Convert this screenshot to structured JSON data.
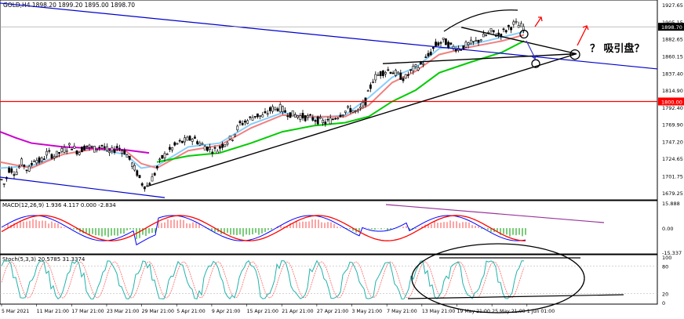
{
  "symbol_header": "GOLD,H4  1898.20 1899.20 1895.00 1898.70",
  "annotation_text": "？ 吸引盘？",
  "price_axis": {
    "ticks": [
      "1927.65",
      "1905.15",
      "1882.65",
      "1860.15",
      "1837.40",
      "1814.90",
      "1792.40",
      "1769.90",
      "1747.20",
      "1724.65",
      "1701.75",
      "1679.25"
    ],
    "current_price": "1898.70",
    "red_level": "1800.00",
    "current_value": 1898.7,
    "red_value": 1800.0
  },
  "macd_panel": {
    "header": "MACD(12,26,9) 1.936 4.117 0.000 -2.834",
    "ticks": [
      "15.888",
      "0.00",
      "-15.337"
    ]
  },
  "stoch_panel": {
    "header": "Stoch(5,3,3) 20.5785 31.3374",
    "ticks": [
      "100",
      "80",
      "20",
      "0"
    ]
  },
  "time_axis": {
    "labels": [
      "5 Mar 2021",
      "11 Mar 21:00",
      "17 Mar 21:00",
      "23 Mar 21:00",
      "29 Mar 21:00",
      "5 Apr 21:00",
      "9 Apr 21:00",
      "15 Apr 21:00",
      "21 Apr 21:00",
      "27 Apr 21:00",
      "3 May 21:00",
      "7 May 21:00",
      "13 May 21:00",
      "19 May 21:00",
      "25 May 21:00",
      "1 Jun 01:00"
    ]
  },
  "colors": {
    "candle": "#000000",
    "ma_fast": "#87cefa",
    "ma_mid": "#f08080",
    "ma_slow": "#00cc00",
    "ma_long": "#cc00cc",
    "channel": "#0000cc",
    "red_line": "#ff0000",
    "macd_line": "#0000ff",
    "signal_line": "#ff0000",
    "hist_pos": "#ff6666",
    "hist_neg": "#22aa22",
    "stoch_main": "#20b2aa",
    "stoch_signal": "#ff6666"
  },
  "chart_data": {
    "type": "candlestick",
    "symbol": "GOLD",
    "timeframe": "H4",
    "y_range": [
      1670,
      1932
    ],
    "candle_path": [
      [
        0,
        1700
      ],
      [
        6,
        1690
      ],
      [
        12,
        1712
      ],
      [
        20,
        1705
      ],
      [
        28,
        1720
      ],
      [
        36,
        1708
      ],
      [
        44,
        1725
      ],
      [
        52,
        1720
      ],
      [
        60,
        1732
      ],
      [
        70,
        1728
      ],
      [
        80,
        1735
      ],
      [
        90,
        1742
      ],
      [
        100,
        1733
      ],
      [
        110,
        1742
      ],
      [
        120,
        1737
      ],
      [
        130,
        1742
      ],
      [
        140,
        1732
      ],
      [
        150,
        1740
      ],
      [
        160,
        1733
      ],
      [
        168,
        1718
      ],
      [
        175,
        1705
      ],
      [
        182,
        1690
      ],
      [
        188,
        1688
      ],
      [
        196,
        1702
      ],
      [
        206,
        1725
      ],
      [
        216,
        1735
      ],
      [
        226,
        1744
      ],
      [
        236,
        1748
      ],
      [
        246,
        1752
      ],
      [
        256,
        1744
      ],
      [
        266,
        1738
      ],
      [
        276,
        1735
      ],
      [
        286,
        1745
      ],
      [
        296,
        1752
      ],
      [
        306,
        1770
      ],
      [
        316,
        1775
      ],
      [
        326,
        1782
      ],
      [
        336,
        1780
      ],
      [
        346,
        1790
      ],
      [
        356,
        1792
      ],
      [
        366,
        1785
      ],
      [
        376,
        1782
      ],
      [
        386,
        1780
      ],
      [
        396,
        1778
      ],
      [
        406,
        1775
      ],
      [
        416,
        1772
      ],
      [
        426,
        1778
      ],
      [
        436,
        1785
      ],
      [
        446,
        1790
      ],
      [
        456,
        1785
      ],
      [
        466,
        1800
      ],
      [
        476,
        1830
      ],
      [
        486,
        1838
      ],
      [
        496,
        1842
      ],
      [
        506,
        1836
      ],
      [
        516,
        1830
      ],
      [
        526,
        1842
      ],
      [
        536,
        1848
      ],
      [
        546,
        1860
      ],
      [
        556,
        1875
      ],
      [
        566,
        1880
      ],
      [
        576,
        1872
      ],
      [
        586,
        1870
      ],
      [
        596,
        1875
      ],
      [
        606,
        1878
      ],
      [
        616,
        1885
      ],
      [
        626,
        1892
      ],
      [
        636,
        1888
      ],
      [
        646,
        1895
      ],
      [
        656,
        1903
      ],
      [
        666,
        1898
      ],
      [
        670,
        1898.7
      ]
    ],
    "moving_averages": [
      {
        "color": "#87cefa",
        "values": [
          [
            0,
            1712
          ],
          [
            40,
            1715
          ],
          [
            80,
            1730
          ],
          [
            120,
            1738
          ],
          [
            160,
            1730
          ],
          [
            180,
            1712
          ],
          [
            200,
            1715
          ],
          [
            240,
            1740
          ],
          [
            280,
            1745
          ],
          [
            320,
            1770
          ],
          [
            360,
            1785
          ],
          [
            400,
            1778
          ],
          [
            440,
            1782
          ],
          [
            470,
            1805
          ],
          [
            500,
            1832
          ],
          [
            530,
            1845
          ],
          [
            560,
            1870
          ],
          [
            600,
            1875
          ],
          [
            640,
            1885
          ],
          [
            668,
            1892
          ]
        ]
      },
      {
        "color": "#f08080",
        "values": [
          [
            0,
            1720
          ],
          [
            40,
            1712
          ],
          [
            80,
            1730
          ],
          [
            120,
            1737
          ],
          [
            160,
            1735
          ],
          [
            180,
            1718
          ],
          [
            200,
            1712
          ],
          [
            240,
            1735
          ],
          [
            280,
            1742
          ],
          [
            320,
            1765
          ],
          [
            360,
            1782
          ],
          [
            400,
            1780
          ],
          [
            440,
            1780
          ],
          [
            470,
            1795
          ],
          [
            500,
            1825
          ],
          [
            530,
            1840
          ],
          [
            560,
            1862
          ],
          [
            600,
            1872
          ],
          [
            640,
            1880
          ],
          [
            668,
            1888
          ]
        ]
      },
      {
        "color": "#00cc00",
        "values": [
          [
            200,
            1720
          ],
          [
            240,
            1728
          ],
          [
            280,
            1732
          ],
          [
            320,
            1745
          ],
          [
            360,
            1760
          ],
          [
            400,
            1768
          ],
          [
            440,
            1772
          ],
          [
            470,
            1780
          ],
          [
            500,
            1800
          ],
          [
            530,
            1815
          ],
          [
            560,
            1838
          ],
          [
            600,
            1852
          ],
          [
            640,
            1865
          ],
          [
            668,
            1880
          ]
        ]
      },
      {
        "color": "#cc00cc",
        "values": [
          [
            0,
            1760
          ],
          [
            20,
            1752
          ],
          [
            40,
            1745
          ],
          [
            80,
            1740
          ],
          [
            120,
            1738
          ],
          [
            160,
            1736
          ],
          [
            190,
            1732
          ]
        ]
      }
    ],
    "drawn_lines": {
      "red_horizontal": 1800.0,
      "blue_channel": [
        [
          0,
          1930
        ],
        [
          838,
          1843
        ]
      ],
      "blue_channel_lower": [
        [
          0,
          1700
        ],
        [
          210,
          1673
        ]
      ],
      "black_trendline": [
        [
          188,
          1688
        ],
        [
          735,
          1863
        ]
      ],
      "black_top": [
        [
          488,
          1850
        ],
        [
          735,
          1863
        ]
      ],
      "black_resistance": [
        [
          588,
          1898
        ],
        [
          735,
          1863
        ]
      ],
      "target_circles": [
        [
          668,
          1889
        ],
        [
          683,
          1850
        ],
        [
          733,
          1862
        ]
      ]
    }
  }
}
